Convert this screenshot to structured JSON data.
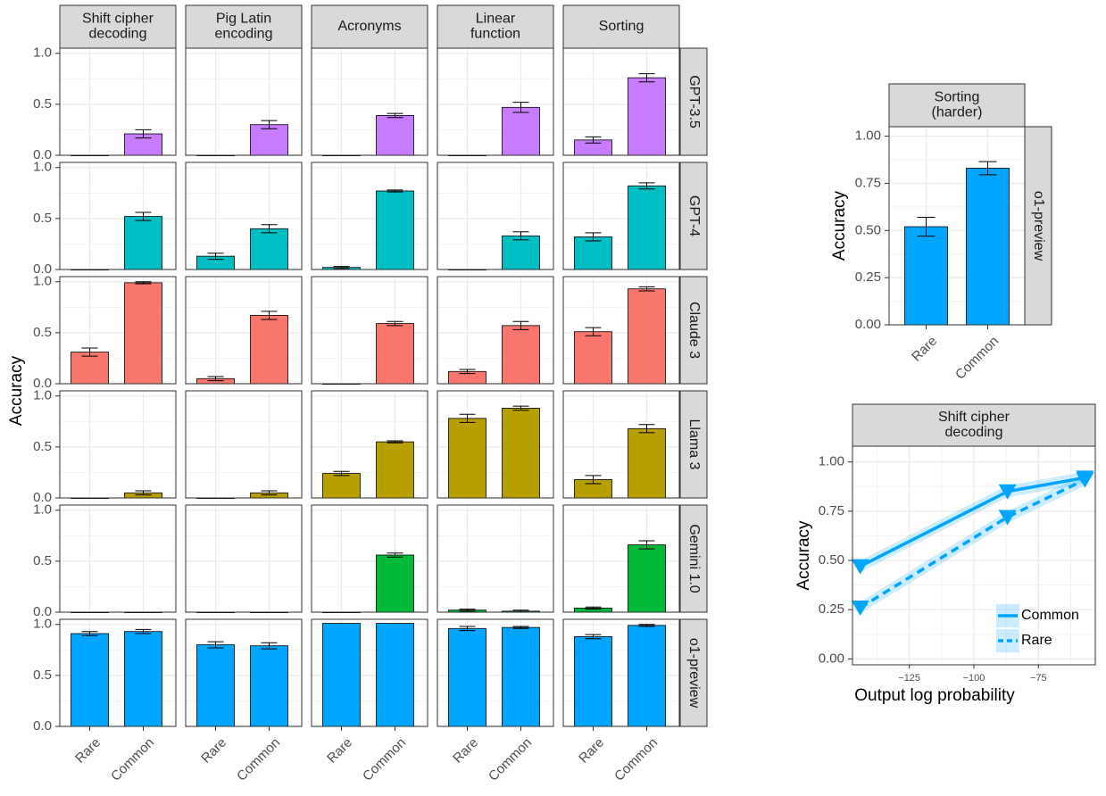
{
  "chart_data": [
    {
      "type": "bar",
      "facet_columns": [
        "Shift cipher\ndecoding",
        "Pig Latin\nencoding",
        "Acronyms",
        "Linear\nfunction",
        "Sorting"
      ],
      "facet_rows": [
        "GPT-3.5",
        "GPT-4",
        "Claude 3",
        "Llama 3",
        "Gemini 1.0",
        "o1-preview"
      ],
      "categories": [
        "Rare",
        "Common"
      ],
      "ylabel": "Accuracy",
      "ylim": [
        0,
        1.05
      ],
      "yticks": [
        "0.0",
        "0.5",
        "1.0"
      ],
      "grid": true,
      "row_colors": [
        "#C77CFF",
        "#00BFC4",
        "#F8766D",
        "#B79F00",
        "#00BA38",
        "#00A5FF"
      ],
      "values": [
        [
          [
            0.0,
            0.21
          ],
          [
            0.0,
            0.3
          ],
          [
            0.0,
            0.39
          ],
          [
            0.0,
            0.47
          ],
          [
            0.15,
            0.76
          ]
        ],
        [
          [
            0.0,
            0.52
          ],
          [
            0.13,
            0.4
          ],
          [
            0.02,
            0.77
          ],
          [
            0.0,
            0.33
          ],
          [
            0.32,
            0.82
          ]
        ],
        [
          [
            0.31,
            0.99
          ],
          [
            0.05,
            0.67
          ],
          [
            0.0,
            0.59
          ],
          [
            0.12,
            0.57
          ],
          [
            0.51,
            0.93
          ]
        ],
        [
          [
            0.0,
            0.05
          ],
          [
            0.0,
            0.05
          ],
          [
            0.24,
            0.55
          ],
          [
            0.78,
            0.88
          ],
          [
            0.18,
            0.68
          ]
        ],
        [
          [
            0.0,
            0.0
          ],
          [
            0.0,
            0.0
          ],
          [
            0.0,
            0.56
          ],
          [
            0.02,
            0.01
          ],
          [
            0.04,
            0.66
          ]
        ],
        [
          [
            0.91,
            0.93
          ],
          [
            0.8,
            0.79
          ],
          [
            1.01,
            1.01
          ],
          [
            0.96,
            0.97
          ],
          [
            0.88,
            0.99
          ]
        ]
      ],
      "errors": [
        [
          [
            0.0,
            0.04
          ],
          [
            0.0,
            0.04
          ],
          [
            0.0,
            0.02
          ],
          [
            0.0,
            0.05
          ],
          [
            0.03,
            0.04
          ]
        ],
        [
          [
            0.0,
            0.04
          ],
          [
            0.03,
            0.04
          ],
          [
            0.01,
            0.01
          ],
          [
            0.0,
            0.04
          ],
          [
            0.04,
            0.03
          ]
        ],
        [
          [
            0.04,
            0.01
          ],
          [
            0.02,
            0.04
          ],
          [
            0.0,
            0.02
          ],
          [
            0.02,
            0.04
          ],
          [
            0.04,
            0.02
          ]
        ],
        [
          [
            0.0,
            0.02
          ],
          [
            0.0,
            0.02
          ],
          [
            0.02,
            0.01
          ],
          [
            0.04,
            0.02
          ],
          [
            0.04,
            0.04
          ]
        ],
        [
          [
            0.0,
            0.0
          ],
          [
            0.0,
            0.0
          ],
          [
            0.0,
            0.02
          ],
          [
            0.01,
            0.01
          ],
          [
            0.01,
            0.04
          ]
        ],
        [
          [
            0.02,
            0.02
          ],
          [
            0.03,
            0.03
          ],
          [
            0.0,
            0.0
          ],
          [
            0.02,
            0.01
          ],
          [
            0.02,
            0.01
          ]
        ]
      ]
    },
    {
      "type": "bar",
      "facet_column": "Sorting\n(harder)",
      "facet_row": "o1-preview",
      "categories": [
        "Rare",
        "Common"
      ],
      "values": [
        0.52,
        0.83
      ],
      "errors": [
        0.05,
        0.035
      ],
      "color": "#00A5FF",
      "ylabel": "Accuracy",
      "ylim": [
        0,
        1.05
      ],
      "yticks": [
        "0.00",
        "0.25",
        "0.50",
        "0.75",
        "1.00"
      ],
      "grid": true
    },
    {
      "type": "line",
      "facet_column": "Shift cipher\ndecoding",
      "xlabel": "Output log probability",
      "ylabel": "Accuracy",
      "xlim": [
        -147,
        -53
      ],
      "ylim": [
        -0.03,
        1.08
      ],
      "xticks": [
        "−125",
        "−100",
        "−75"
      ],
      "yticks": [
        "0.00",
        "0.25",
        "0.50",
        "0.75",
        "1.00"
      ],
      "grid": true,
      "color": "#00A5FF",
      "legend": "bottom-right",
      "series": [
        {
          "name": "Common",
          "style": "solid",
          "x": [
            -144,
            -87,
            -57
          ],
          "y": [
            0.47,
            0.85,
            0.92
          ],
          "band": 0.03
        },
        {
          "name": "Rare",
          "style": "dashed",
          "x": [
            -144,
            -87,
            -57
          ],
          "y": [
            0.26,
            0.72,
            0.91
          ],
          "band": 0.03
        }
      ]
    }
  ]
}
